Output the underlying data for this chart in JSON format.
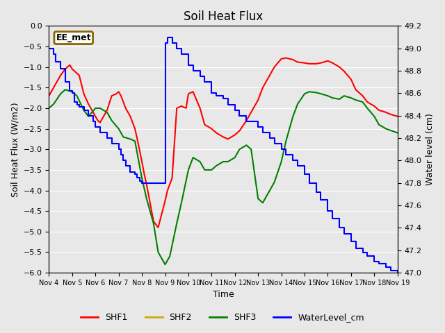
{
  "title": "Soil Heat Flux",
  "ylabel_left": "Soil Heat Flux (W/m2)",
  "ylabel_right": "Water level (cm)",
  "xlabel": "Time",
  "annotation_label": "EE_met",
  "ylim_left": [
    -6.0,
    0.0
  ],
  "ylim_right": [
    47.0,
    49.2
  ],
  "background_color": "#e8e8e8",
  "plot_bg_color": "#e8e8e8",
  "grid_color": "white",
  "shf2_color": "#ccaa00",
  "shf2_value": 0.0,
  "x_tick_labels": [
    "Nov 4",
    "Nov 5",
    "Nov 6",
    "Nov 7",
    "Nov 8",
    "Nov 9",
    "Nov 10",
    "Nov 11",
    "Nov 12",
    "Nov 13",
    "Nov 14",
    "Nov 15",
    "Nov 16",
    "Nov 17",
    "Nov 18",
    "Nov 19"
  ],
  "SHF1": {
    "color": "red",
    "x": [
      4,
      4.1,
      4.2,
      4.3,
      4.5,
      4.7,
      4.9,
      5.0,
      5.1,
      5.2,
      5.3,
      5.5,
      5.7,
      5.9,
      6.0,
      6.1,
      6.2,
      6.5,
      6.7,
      6.9,
      7.0,
      7.1,
      7.2,
      7.3,
      7.5,
      7.7,
      7.8,
      8.0,
      8.1,
      8.2,
      8.5,
      8.7,
      9.0,
      9.1,
      9.2,
      9.3,
      9.5,
      9.7,
      9.9,
      10.0,
      10.2,
      10.5,
      10.7,
      11.0,
      11.2,
      11.5,
      11.7,
      12.0,
      12.2,
      12.5,
      12.7,
      13.0,
      13.2,
      13.5,
      13.7,
      14.0,
      14.2,
      14.5,
      14.7,
      15.0,
      15.2,
      15.5,
      15.7,
      16.0,
      16.2,
      16.5,
      16.7,
      17.0,
      17.2,
      17.5,
      17.7,
      18.0,
      18.2,
      18.5,
      18.7,
      19.0
    ],
    "y": [
      -1.7,
      -1.6,
      -1.5,
      -1.4,
      -1.2,
      -1.05,
      -0.95,
      -1.05,
      -1.1,
      -1.15,
      -1.2,
      -1.65,
      -1.9,
      -2.1,
      -2.2,
      -2.3,
      -2.35,
      -2.05,
      -1.7,
      -1.65,
      -1.6,
      -1.7,
      -1.85,
      -2.0,
      -2.2,
      -2.5,
      -2.75,
      -3.3,
      -3.6,
      -3.85,
      -4.75,
      -4.9,
      -4.25,
      -4.0,
      -3.85,
      -3.7,
      -2.0,
      -1.95,
      -2.0,
      -1.65,
      -1.6,
      -2.0,
      -2.4,
      -2.5,
      -2.6,
      -2.7,
      -2.75,
      -2.65,
      -2.55,
      -2.3,
      -2.1,
      -1.8,
      -1.5,
      -1.2,
      -1.0,
      -0.8,
      -0.78,
      -0.82,
      -0.88,
      -0.9,
      -0.92,
      -0.92,
      -0.9,
      -0.85,
      -0.9,
      -1.0,
      -1.1,
      -1.3,
      -1.55,
      -1.7,
      -1.85,
      -1.95,
      -2.05,
      -2.1,
      -2.15,
      -2.2
    ]
  },
  "SHF3": {
    "color": "green",
    "x": [
      4,
      4.2,
      4.5,
      4.7,
      5.0,
      5.2,
      5.5,
      5.7,
      6.0,
      6.2,
      6.5,
      6.7,
      7.0,
      7.2,
      7.5,
      7.7,
      8.0,
      8.2,
      8.5,
      8.7,
      9.0,
      9.2,
      9.5,
      9.7,
      10.0,
      10.2,
      10.5,
      10.7,
      11.0,
      11.2,
      11.5,
      11.7,
      12.0,
      12.2,
      12.5,
      12.7,
      13.0,
      13.2,
      13.5,
      13.7,
      14.0,
      14.2,
      14.5,
      14.7,
      15.0,
      15.2,
      15.5,
      15.7,
      16.0,
      16.2,
      16.5,
      16.7,
      17.0,
      17.2,
      17.5,
      17.7,
      18.0,
      18.2,
      18.5,
      19.0
    ],
    "y": [
      -2.0,
      -1.9,
      -1.65,
      -1.55,
      -1.6,
      -1.7,
      -2.05,
      -2.2,
      -2.0,
      -2.0,
      -2.1,
      -2.3,
      -2.5,
      -2.7,
      -2.75,
      -2.8,
      -3.7,
      -4.2,
      -4.8,
      -5.5,
      -5.8,
      -5.6,
      -4.8,
      -4.3,
      -3.5,
      -3.2,
      -3.3,
      -3.5,
      -3.5,
      -3.4,
      -3.3,
      -3.3,
      -3.2,
      -3.0,
      -2.9,
      -3.0,
      -4.2,
      -4.3,
      -4.0,
      -3.8,
      -3.3,
      -2.8,
      -2.2,
      -1.9,
      -1.65,
      -1.6,
      -1.62,
      -1.65,
      -1.7,
      -1.75,
      -1.78,
      -1.7,
      -1.75,
      -1.8,
      -1.85,
      -2.0,
      -2.2,
      -2.4,
      -2.5,
      -2.6
    ]
  },
  "WaterLevel": {
    "color": "blue",
    "x": [
      4.0,
      4.05,
      4.1,
      4.2,
      4.3,
      4.5,
      4.7,
      4.9,
      5.0,
      5.1,
      5.2,
      5.3,
      5.5,
      5.7,
      5.9,
      6.0,
      6.2,
      6.5,
      6.7,
      7.0,
      7.1,
      7.2,
      7.3,
      7.5,
      7.7,
      7.8,
      7.9,
      8.0,
      8.1,
      8.5,
      9.0,
      9.1,
      9.2,
      9.3,
      9.5,
      9.7,
      10.0,
      10.2,
      10.5,
      10.7,
      11.0,
      11.2,
      11.5,
      11.7,
      12.0,
      12.2,
      12.5,
      12.7,
      13.0,
      13.2,
      13.5,
      13.7,
      14.0,
      14.2,
      14.5,
      14.7,
      15.0,
      15.2,
      15.5,
      15.7,
      16.0,
      16.2,
      16.5,
      16.7,
      17.0,
      17.2,
      17.5,
      17.7,
      18.0,
      18.2,
      18.5,
      18.7,
      19.0
    ],
    "y": [
      49.0,
      49.0,
      49.0,
      48.95,
      48.88,
      48.82,
      48.7,
      48.62,
      48.6,
      48.52,
      48.5,
      48.48,
      48.45,
      48.4,
      48.35,
      48.3,
      48.25,
      48.2,
      48.15,
      48.1,
      48.05,
      48.0,
      47.95,
      47.9,
      47.88,
      47.85,
      47.82,
      47.8,
      47.8,
      47.8,
      49.05,
      49.1,
      49.1,
      49.05,
      49.0,
      48.95,
      48.85,
      48.8,
      48.75,
      48.7,
      48.6,
      48.58,
      48.55,
      48.5,
      48.45,
      48.4,
      48.35,
      48.35,
      48.3,
      48.25,
      48.2,
      48.15,
      48.1,
      48.05,
      48.0,
      47.95,
      47.88,
      47.8,
      47.72,
      47.65,
      47.55,
      47.48,
      47.4,
      47.35,
      47.28,
      47.22,
      47.18,
      47.15,
      47.1,
      47.08,
      47.05,
      47.02,
      47.0
    ]
  }
}
